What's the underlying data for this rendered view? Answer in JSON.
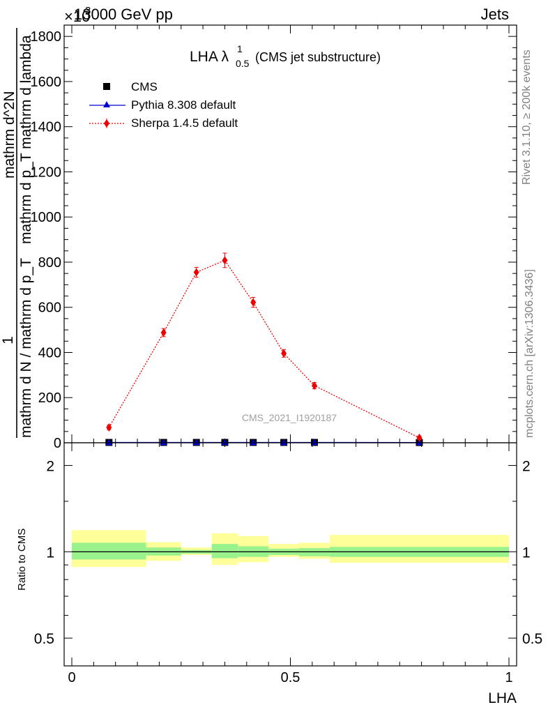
{
  "header": {
    "energy_label": "13000 GeV pp",
    "process_label": "Jets",
    "exponent_label": "×10",
    "exponent_power": "3"
  },
  "side_text": {
    "rivet": "Rivet 3.1.10, ≥ 200k events",
    "mcplots": "mcplots.cern.ch [arXiv:1306.3436]"
  },
  "watermark": "CMS_2021_I1920187",
  "title": {
    "main": "LHA λ",
    "sup": "1",
    "sub": "0.5",
    "suffix": "(CMS jet substructure)"
  },
  "legend": {
    "placement": "top-left",
    "entries": [
      "CMS",
      "Pythia 8.308 default",
      "Sherpa 1.4.5 default"
    ]
  },
  "colors": {
    "cms": "#000000",
    "pythia": "#0000cc",
    "sherpa": "#ee0000",
    "band_inner": "#99f28c",
    "band_outer": "#ffff99"
  },
  "chart_data": [
    {
      "type": "line",
      "panel": "main",
      "ylabel_numerator": "1",
      "ylabel_denominator": "mathrm d N / mathrm d p_T",
      "ylabel_inner_num": "mathrm d^2N",
      "ylabel_inner_den": "mathrm d p_T mathrm d lambda",
      "ylim": [
        0,
        1850
      ],
      "y_multiplier": 1000,
      "yticks": [
        0,
        200,
        400,
        600,
        800,
        1000,
        1200,
        1400,
        1600,
        1800
      ],
      "xlim": [
        0,
        1
      ],
      "grid": false,
      "series": [
        {
          "name": "CMS",
          "marker": "square",
          "x": [
            0.085,
            0.21,
            0.285,
            0.35,
            0.415,
            0.485,
            0.555,
            0.795
          ],
          "y": [
            1.5,
            1.5,
            1.5,
            1.5,
            1.5,
            1.5,
            1.5,
            1.0
          ]
        },
        {
          "name": "Pythia 8.308 default",
          "marker": "triangle",
          "x": [
            0.085,
            0.21,
            0.285,
            0.35,
            0.415,
            0.485,
            0.555,
            0.795
          ],
          "y": [
            1.5,
            1.5,
            1.5,
            1.5,
            1.5,
            1.5,
            1.5,
            1.0
          ]
        },
        {
          "name": "Sherpa 1.4.5 default",
          "marker": "diamond",
          "x": [
            0.085,
            0.21,
            0.285,
            0.35,
            0.415,
            0.485,
            0.555,
            0.795
          ],
          "y": [
            68,
            488,
            755,
            808,
            622,
            396,
            253,
            22
          ],
          "yerr": [
            10,
            18,
            22,
            32,
            22,
            17,
            14,
            8
          ]
        }
      ]
    },
    {
      "type": "area",
      "panel": "ratio",
      "xlabel": "LHA",
      "ylabel": "Ratio to CMS",
      "ylim": [
        0.4,
        2.4
      ],
      "log_scale": true,
      "yticks": [
        0.5,
        1,
        2
      ],
      "ytick_labels": [
        "0.5",
        "1",
        "2"
      ],
      "xticks": [
        0,
        0.5,
        1
      ],
      "xtick_labels": [
        "0",
        "0.5",
        "1"
      ],
      "bins": [
        {
          "x0": 0.0,
          "x1": 0.17,
          "inner": [
            0.94,
            1.075
          ],
          "outer": [
            0.885,
            1.19
          ]
        },
        {
          "x0": 0.17,
          "x1": 0.25,
          "inner": [
            0.97,
            1.035
          ],
          "outer": [
            0.93,
            1.08
          ]
        },
        {
          "x0": 0.25,
          "x1": 0.32,
          "inner": [
            0.985,
            1.015
          ],
          "outer": [
            0.975,
            1.035
          ]
        },
        {
          "x0": 0.32,
          "x1": 0.38,
          "inner": [
            0.95,
            1.065
          ],
          "outer": [
            0.9,
            1.16
          ]
        },
        {
          "x0": 0.38,
          "x1": 0.45,
          "inner": [
            0.96,
            1.045
          ],
          "outer": [
            0.92,
            1.135
          ]
        },
        {
          "x0": 0.45,
          "x1": 0.52,
          "inner": [
            0.975,
            1.025
          ],
          "outer": [
            0.96,
            1.065
          ]
        },
        {
          "x0": 0.52,
          "x1": 0.59,
          "inner": [
            0.965,
            1.03
          ],
          "outer": [
            0.945,
            1.075
          ]
        },
        {
          "x0": 0.59,
          "x1": 1.0,
          "inner": [
            0.96,
            1.04
          ],
          "outer": [
            0.915,
            1.145
          ]
        }
      ],
      "reference_line": 1
    }
  ]
}
